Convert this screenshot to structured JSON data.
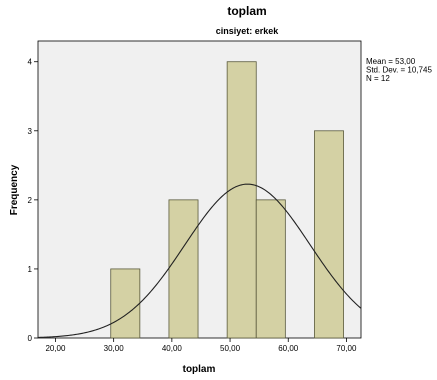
{
  "chart_data": {
    "type": "bar",
    "title": "toplam",
    "subtitle": "cinsiyet: erkek",
    "xlabel": "toplam",
    "ylabel": "Frequency",
    "xlim": [
      17,
      72.5
    ],
    "ylim": [
      0,
      4.3
    ],
    "x_ticks": [
      "20,00",
      "30,00",
      "40,00",
      "50,00",
      "60,00",
      "70,00"
    ],
    "x_tick_values": [
      20,
      30,
      40,
      50,
      60,
      70
    ],
    "y_ticks": [
      "0",
      "1",
      "2",
      "3",
      "4"
    ],
    "y_tick_values": [
      0,
      1,
      2,
      3,
      4
    ],
    "bins": [
      {
        "x0": 29.5,
        "x1": 34.5,
        "count": 1
      },
      {
        "x0": 39.5,
        "x1": 44.5,
        "count": 2
      },
      {
        "x0": 49.5,
        "x1": 54.5,
        "count": 4
      },
      {
        "x0": 54.5,
        "x1": 59.5,
        "count": 2
      },
      {
        "x0": 64.5,
        "x1": 69.5,
        "count": 3
      }
    ],
    "normal_curve": {
      "mean": 53.0,
      "std": 10.745,
      "n": 12,
      "bin_width": 5
    },
    "stats": [
      "Mean = 53,00",
      "Std. Dev. = 10,745",
      "N = 12"
    ],
    "grid": false,
    "legend": "right",
    "colors": {
      "bar_fill": "#d4d1a4",
      "bar_stroke": "#5a5a3c",
      "plot_bg": "#f0f0f0",
      "curve": "#222222"
    }
  }
}
